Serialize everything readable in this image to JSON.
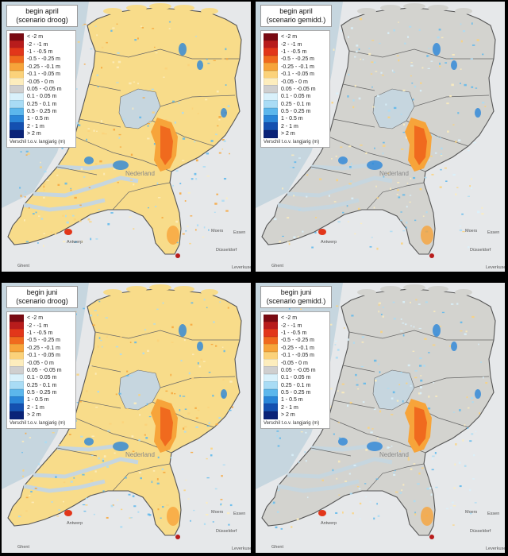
{
  "panels": [
    {
      "title_line1": "begin april",
      "title_line2": "(scenario droog)",
      "scenario": "droog"
    },
    {
      "title_line1": "begin april",
      "title_line2": "(scenario gemidd.)",
      "scenario": "gemidd"
    },
    {
      "title_line1": "begin juni",
      "title_line2": "(scenario droog)",
      "scenario": "droog"
    },
    {
      "title_line1": "begin juni",
      "title_line2": "(scenario gemidd.)",
      "scenario": "gemidd"
    }
  ],
  "legend": {
    "caption": "Verschil t.o.v. langjarig (m)",
    "classes": [
      {
        "label": "< -2 m",
        "color": "#7a0a12"
      },
      {
        "label": "-2 - -1 m",
        "color": "#b81c1c"
      },
      {
        "label": "-1 - -0.5 m",
        "color": "#e2361a"
      },
      {
        "label": "-0.5 - -0.25 m",
        "color": "#f06a1e"
      },
      {
        "label": "-0.25 - -0.1 m",
        "color": "#f7a43a"
      },
      {
        "label": "-0.1 - -0.05 m",
        "color": "#fbd27a"
      },
      {
        "label": "-0.05 - 0 m",
        "color": "#fdedbd"
      },
      {
        "label": "0.05 - -0.05 m",
        "color": "#cfcfcf"
      },
      {
        "label": "0.1 - 0.05 m",
        "color": "#d9f1fb"
      },
      {
        "label": "0.25 - 0.1 m",
        "color": "#a9dcf5"
      },
      {
        "label": "0.5 - 0.25 m",
        "color": "#5cb7ec"
      },
      {
        "label": "1 - 0.5 m",
        "color": "#2a86d8"
      },
      {
        "label": "2 - 1 m",
        "color": "#1450b0"
      },
      {
        "label": "> 2 m",
        "color": "#0a2378"
      }
    ]
  },
  "cities": {
    "antwerp": "Antwerp",
    "essen": "Essen",
    "moers": "Moers",
    "dusseldorf": "Düsseldorf",
    "leverkusen": "Leverkusen",
    "ghent": "Ghent",
    "nederland": "Nederland"
  },
  "colors": {
    "droog_land": "#f8dc8a",
    "gemidd_land": "#d3d3cf",
    "water": "#c6d6df",
    "orange_hotspot": "#f08a2c"
  }
}
